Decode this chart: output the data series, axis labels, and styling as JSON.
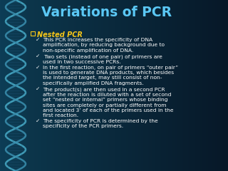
{
  "title": "Variations of PCR",
  "title_color": "#5bc8f5",
  "title_fontsize": 13.5,
  "heading": "Nested PCR",
  "heading_color": "#f5c518",
  "heading_fontsize": 7.0,
  "bullet_color": "#ffffff",
  "bullet_fontsize": 5.4,
  "bg_left_color": "#0d3a50",
  "bg_right_color": "#0a2540",
  "helix_color1": "#2a7a9a",
  "helix_color2": "#1a5a7a",
  "bullets": [
    "This PCR increases the specificity of DNA\namplification, by reducing background due to\nnon-specific amplification of DNA.",
    " Two sets (instead of one pair) of primers are\nused in two successive PCRs.",
    "In the first reaction, on pair of primers “outer pair”\nis used to generate DNA products, which besides\nthe intended target, may still consist of non-\nspecifically amplified DNA fragments.",
    "The product(s) are then used in a second PCR\nafter the reaction is diluted with a set of second\nset “nested or internal” primers whose binding\nsites are completely or partially different from\nand located 3’ of each of the primers used in the\nfirst reaction.",
    "The specificity of PCR is determined by the\nspecificity of the PCR primers."
  ],
  "figsize": [
    3.2,
    2.4
  ],
  "dpi": 100
}
